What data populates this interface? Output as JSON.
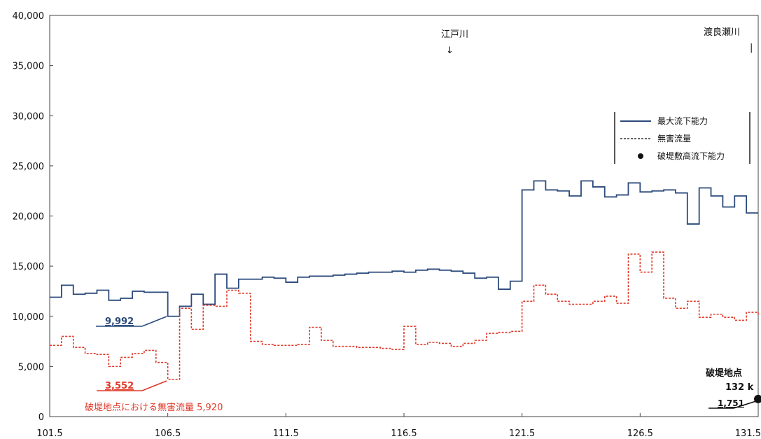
{
  "chart_data": {
    "type": "line",
    "title": "",
    "xlabel": "",
    "ylabel": "",
    "xlim": [
      101.5,
      131.5
    ],
    "ylim": [
      0,
      40000
    ],
    "x_ticks": [
      "101.5",
      "106.5",
      "111.5",
      "116.5",
      "121.5",
      "126.5",
      "131.5"
    ],
    "y_ticks": [
      "0",
      "5,000",
      "10,000",
      "15,000",
      "20,000",
      "25,000",
      "30,000",
      "35,000",
      "40,000"
    ],
    "grid": false,
    "legend_position": "right",
    "legend": [
      {
        "label": "最大流下能力",
        "style": "solid",
        "color": "#2c4a7c"
      },
      {
        "label": "無害流量",
        "style": "dashed",
        "color": "#e03a2a"
      },
      {
        "label": "破堤敷高流下能力",
        "style": "marker",
        "color": "#111111"
      }
    ],
    "series": [
      {
        "name": "最大流下能力",
        "color": "#2c4a7c",
        "style": "step",
        "x": [
          101.5,
          102.0,
          102.5,
          103.0,
          103.5,
          104.0,
          104.5,
          105.0,
          105.5,
          106.0,
          106.5,
          107.0,
          107.5,
          108.0,
          108.5,
          109.0,
          109.5,
          110.0,
          110.5,
          111.0,
          111.5,
          112.0,
          112.5,
          113.0,
          113.5,
          114.0,
          114.5,
          115.0,
          115.5,
          116.0,
          116.5,
          117.0,
          117.5,
          118.0,
          118.5,
          119.0,
          119.5,
          120.0,
          120.5,
          121.0,
          121.5,
          122.0,
          122.5,
          123.0,
          123.5,
          124.0,
          124.5,
          125.0,
          125.5,
          126.0,
          126.5,
          127.0,
          127.5,
          128.0,
          128.5,
          129.0,
          129.5,
          130.0,
          130.5,
          131.0,
          131.5
        ],
        "y": [
          11900,
          13100,
          12200,
          12300,
          12600,
          11600,
          11800,
          12500,
          12400,
          12400,
          10000,
          11000,
          12200,
          11200,
          14200,
          12800,
          13700,
          13700,
          13900,
          13800,
          13400,
          13900,
          14000,
          14000,
          14100,
          14200,
          14300,
          14400,
          14400,
          14500,
          14400,
          14600,
          14700,
          14600,
          14500,
          14300,
          13800,
          13900,
          12700,
          13500,
          22600,
          23500,
          22600,
          22500,
          22000,
          23500,
          22900,
          21900,
          22100,
          23300,
          22400,
          22500,
          22600,
          22300,
          19200,
          22800,
          22000,
          20900,
          22000,
          20300,
          20300
        ]
      },
      {
        "name": "無害流量",
        "color": "#e03a2a",
        "style": "step-dashed",
        "x": [
          101.5,
          102.0,
          102.5,
          103.0,
          103.5,
          104.0,
          104.5,
          105.0,
          105.5,
          106.0,
          106.5,
          107.0,
          107.5,
          108.0,
          108.5,
          109.0,
          109.5,
          110.0,
          110.5,
          111.0,
          111.5,
          112.0,
          112.5,
          113.0,
          113.5,
          114.0,
          114.5,
          115.0,
          115.5,
          116.0,
          116.5,
          117.0,
          117.5,
          118.0,
          118.5,
          119.0,
          119.5,
          120.0,
          120.5,
          121.0,
          121.5,
          122.0,
          122.5,
          123.0,
          123.5,
          124.0,
          124.5,
          125.0,
          125.5,
          126.0,
          126.5,
          127.0,
          127.5,
          128.0,
          128.5,
          129.0,
          129.5,
          130.0,
          130.5,
          131.0,
          131.5
        ],
        "y": [
          7100,
          8000,
          6900,
          6300,
          6200,
          5000,
          5900,
          6300,
          6600,
          5400,
          3700,
          10800,
          8700,
          11100,
          11000,
          12600,
          12300,
          7500,
          7200,
          7100,
          7100,
          7200,
          8900,
          7600,
          7000,
          7000,
          6900,
          6900,
          6800,
          6700,
          9000,
          7200,
          7400,
          7300,
          7000,
          7300,
          7600,
          8300,
          8400,
          8500,
          11500,
          13100,
          12200,
          11500,
          11200,
          11200,
          11500,
          12000,
          11300,
          16200,
          14400,
          16400,
          11800,
          10800,
          11500,
          9900,
          10200,
          9900,
          9600,
          10400,
          10100
        ]
      }
    ],
    "breach_marker": {
      "x": 131.5,
      "y": 1751,
      "label": "破堤数高流下能力"
    },
    "annotations": [
      {
        "text": "江戸川",
        "arrow": "↓",
        "x": 118.6
      },
      {
        "text": "渡良瀬川",
        "arrow": "|",
        "x": 131.0
      },
      {
        "text": "9,992",
        "value": 9992,
        "color": "#2c4a7c"
      },
      {
        "text": "3,552",
        "value": 3552,
        "color": "#e03a2a"
      },
      {
        "text": "1,751",
        "value": 1751,
        "color": "#111111"
      },
      {
        "text": "破堤地点",
        "subtext": "132 k"
      },
      {
        "text": "破堤地点における無害流量  5,920",
        "color": "#e03a2a"
      }
    ]
  }
}
